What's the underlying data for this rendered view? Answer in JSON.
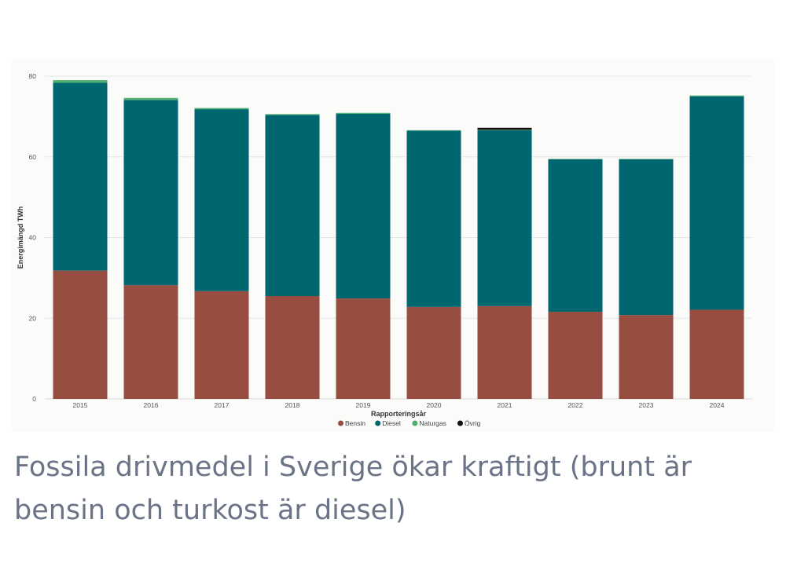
{
  "caption": "Fossila drivmedel i Sverige ökar kraftigt (brunt är bensin och turkost är diesel)",
  "chart_data": {
    "type": "bar",
    "stacked": true,
    "categories": [
      "2015",
      "2016",
      "2017",
      "2018",
      "2019",
      "2020",
      "2021",
      "2022",
      "2023",
      "2024"
    ],
    "xlabel": "Rapporteringsår",
    "ylabel": "Energimängd TWh",
    "ylim": [
      0,
      80
    ],
    "yticks": [
      0,
      20,
      40,
      60,
      80
    ],
    "grid": true,
    "legend_position": "bottom",
    "series": [
      {
        "name": "Bensin",
        "color": "#974d40",
        "values": [
          31.8,
          28.2,
          26.7,
          25.5,
          24.9,
          22.8,
          23.0,
          21.6,
          20.8,
          22.1
        ]
      },
      {
        "name": "Diesel",
        "color": "#006770",
        "values": [
          46.6,
          45.9,
          45.1,
          44.9,
          45.8,
          43.7,
          43.6,
          37.8,
          38.6,
          52.9
        ]
      },
      {
        "name": "Naturgas",
        "color": "#4caf6e",
        "values": [
          0.6,
          0.5,
          0.3,
          0.2,
          0.2,
          0.1,
          0.1,
          0.1,
          0.1,
          0.2
        ]
      },
      {
        "name": "Övrig",
        "color": "#111111",
        "values": [
          0.0,
          0.0,
          0.0,
          0.0,
          0.0,
          0.0,
          0.5,
          0.0,
          0.0,
          0.0
        ]
      }
    ]
  }
}
